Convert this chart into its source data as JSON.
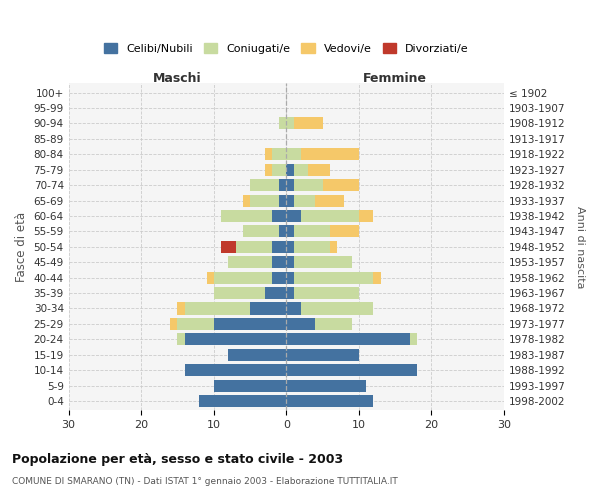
{
  "age_groups": [
    "0-4",
    "5-9",
    "10-14",
    "15-19",
    "20-24",
    "25-29",
    "30-34",
    "35-39",
    "40-44",
    "45-49",
    "50-54",
    "55-59",
    "60-64",
    "65-69",
    "70-74",
    "75-79",
    "80-84",
    "85-89",
    "90-94",
    "95-99",
    "100+"
  ],
  "birth_years": [
    "1998-2002",
    "1993-1997",
    "1988-1992",
    "1983-1987",
    "1978-1982",
    "1973-1977",
    "1968-1972",
    "1963-1967",
    "1958-1962",
    "1953-1957",
    "1948-1952",
    "1943-1947",
    "1938-1942",
    "1933-1937",
    "1928-1932",
    "1923-1927",
    "1918-1922",
    "1913-1917",
    "1908-1912",
    "1903-1907",
    "≤ 1902"
  ],
  "maschi": {
    "celibi": [
      12,
      10,
      14,
      8,
      14,
      10,
      5,
      3,
      2,
      2,
      2,
      1,
      2,
      1,
      1,
      0,
      0,
      0,
      0,
      0,
      0
    ],
    "coniugati": [
      0,
      0,
      0,
      0,
      1,
      5,
      9,
      7,
      8,
      6,
      5,
      5,
      7,
      4,
      4,
      2,
      2,
      0,
      1,
      0,
      0
    ],
    "vedovi": [
      0,
      0,
      0,
      0,
      0,
      1,
      1,
      0,
      1,
      0,
      0,
      0,
      0,
      1,
      0,
      1,
      1,
      0,
      0,
      0,
      0
    ],
    "divorziati": [
      0,
      0,
      0,
      0,
      0,
      0,
      0,
      0,
      0,
      0,
      2,
      0,
      0,
      0,
      0,
      0,
      0,
      0,
      0,
      0,
      0
    ]
  },
  "femmine": {
    "nubili": [
      12,
      11,
      18,
      10,
      17,
      4,
      2,
      1,
      1,
      1,
      1,
      1,
      2,
      1,
      1,
      1,
      0,
      0,
      0,
      0,
      0
    ],
    "coniugate": [
      0,
      0,
      0,
      0,
      1,
      5,
      10,
      9,
      11,
      8,
      5,
      5,
      8,
      3,
      4,
      2,
      2,
      0,
      1,
      0,
      0
    ],
    "vedove": [
      0,
      0,
      0,
      0,
      0,
      0,
      0,
      0,
      1,
      0,
      1,
      4,
      2,
      4,
      5,
      3,
      8,
      0,
      4,
      0,
      0
    ],
    "divorziate": [
      0,
      0,
      0,
      0,
      0,
      0,
      0,
      0,
      0,
      0,
      0,
      0,
      0,
      0,
      0,
      0,
      0,
      0,
      0,
      0,
      0
    ]
  },
  "colors": {
    "celibi_nubili": "#4472a0",
    "coniugati_e": "#c8dba0",
    "vedovi_e": "#f5c869",
    "divorziati_e": "#c0392b"
  },
  "xlim": 30,
  "title": "Popolazione per età, sesso e stato civile - 2003",
  "subtitle": "COMUNE DI SMARANO (TN) - Dati ISTAT 1° gennaio 2003 - Elaborazione TUTTITALIA.IT",
  "ylabel_left": "Fasce di età",
  "ylabel_right": "Anni di nascita",
  "xlabel_maschi": "Maschi",
  "xlabel_femmine": "Femmine",
  "legend_labels": [
    "Celibi/Nubili",
    "Coniugati/e",
    "Vedovi/e",
    "Divorziati/e"
  ],
  "bg_color": "#ffffff",
  "grid_color": "#cccccc"
}
